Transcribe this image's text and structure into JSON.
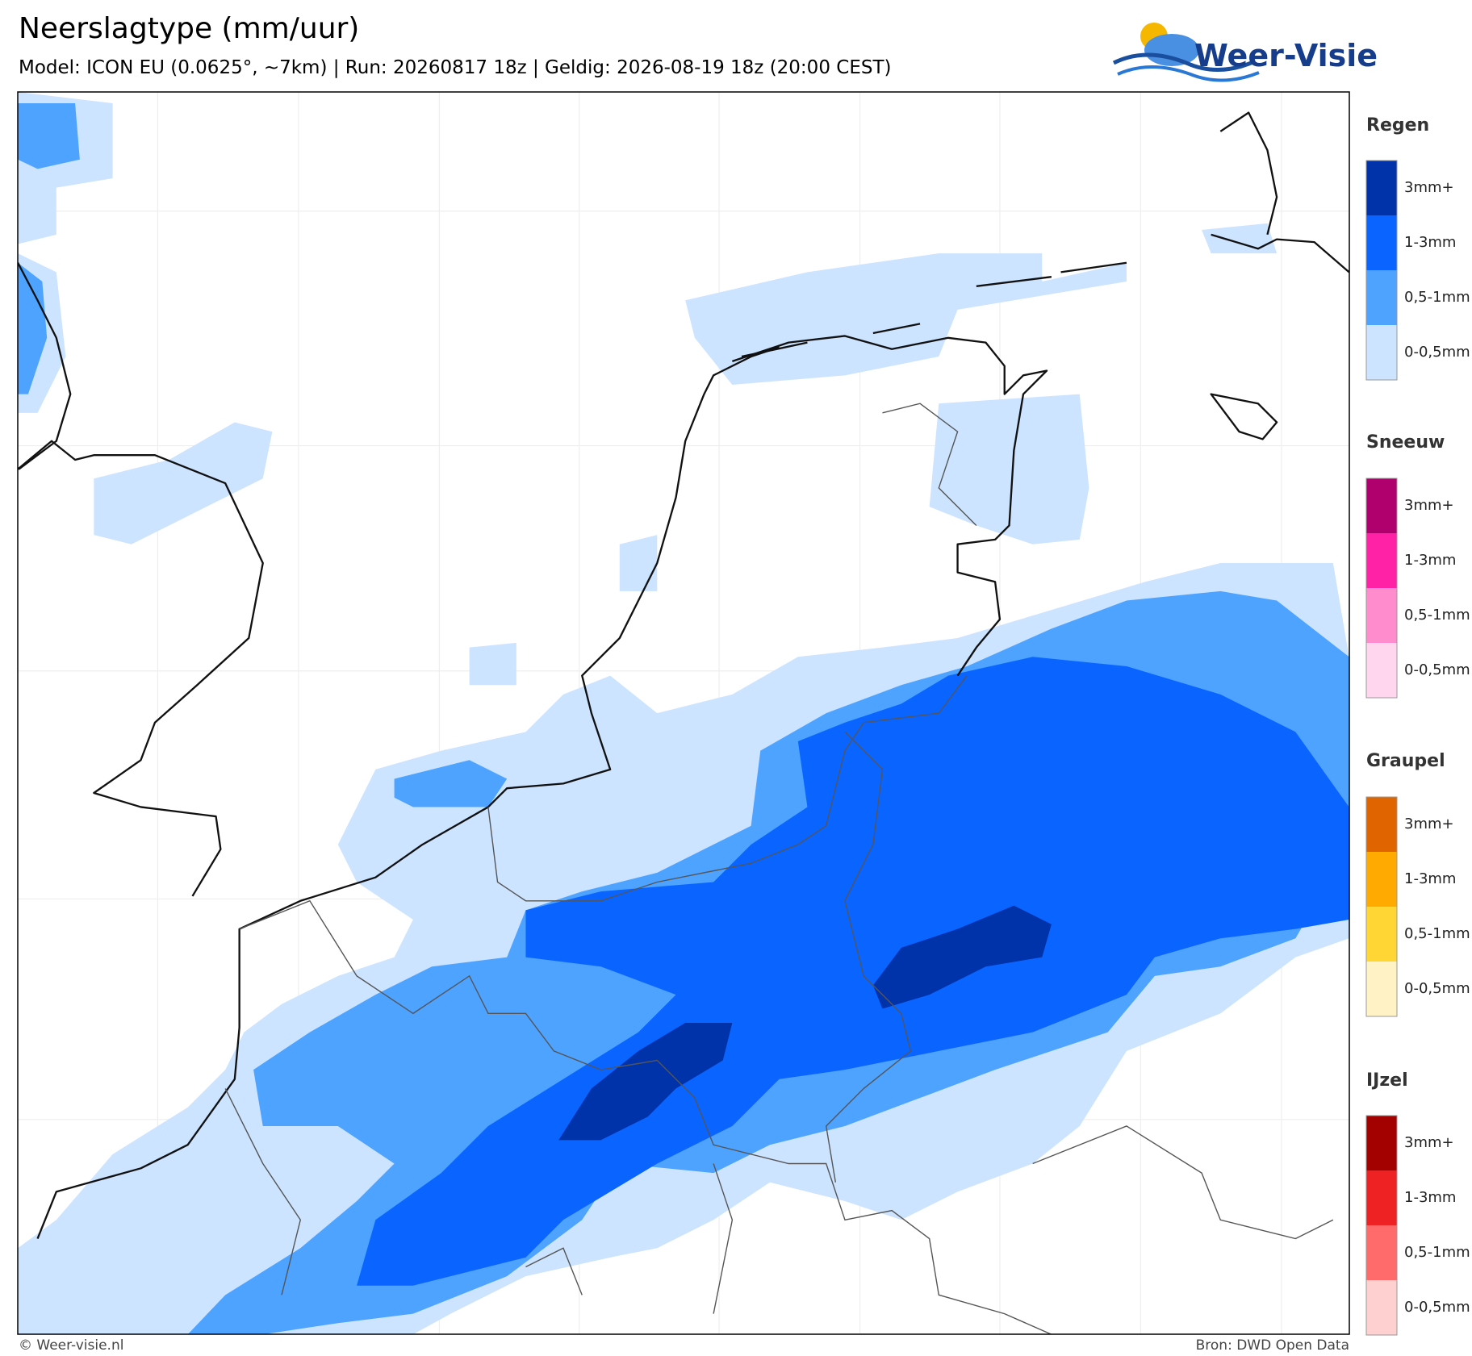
{
  "header": {
    "title": "Neerslagtype (mm/uur)",
    "subtitle": "Model: ICON EU (0.0625°, ~7km)  |  Run: 20260817 18z  |  Geldig: 2026-08-19 18z (20:00 CEST)"
  },
  "logo": {
    "text": "Weer-Visie"
  },
  "legend": [
    {
      "title": "Regen",
      "labels": [
        "3mm+",
        "1-3mm",
        "0,5-1mm",
        "0-0,5mm"
      ],
      "colors": [
        "#0033aa",
        "#0a64ff",
        "#4da3ff",
        "#cce4ff"
      ]
    },
    {
      "title": "Sneeuw",
      "labels": [
        "3mm+",
        "1-3mm",
        "0,5-1mm",
        "0-0,5mm"
      ],
      "colors": [
        "#b0006e",
        "#ff22a6",
        "#ff8ccc",
        "#ffd6ee"
      ]
    },
    {
      "title": "Graupel",
      "labels": [
        "3mm+",
        "1-3mm",
        "0,5-1mm",
        "0-0,5mm"
      ],
      "colors": [
        "#e06500",
        "#ffaa00",
        "#ffd633",
        "#fff2c4"
      ]
    },
    {
      "title": "IJzel",
      "labels": [
        "3mm+",
        "1-3mm",
        "0,5-1mm",
        "0-0,5mm"
      ],
      "colors": [
        "#a30000",
        "#ee2222",
        "#ff6b6b",
        "#ffd0d0"
      ]
    }
  ],
  "footer": {
    "credit": "© Weer-visie.nl",
    "source": "Bron: DWD Open Data"
  }
}
